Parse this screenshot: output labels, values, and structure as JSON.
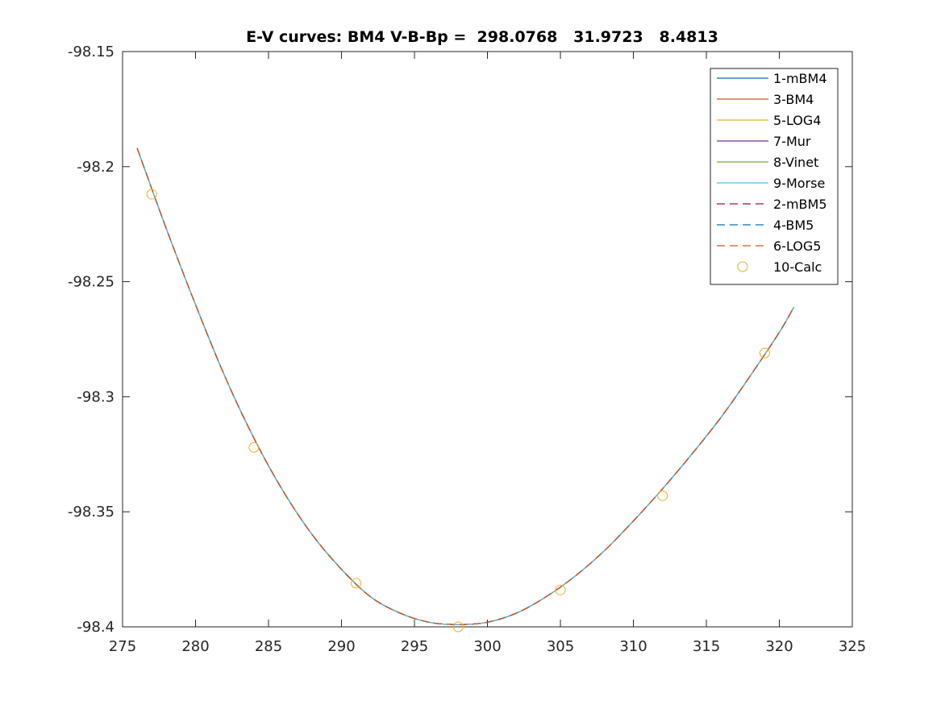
{
  "chart_data": {
    "type": "line",
    "title": "E-V curves: BM4 V-B-Bp =  298.0768   31.9723   8.4813",
    "xlabel": "",
    "ylabel": "",
    "xlim": [
      275,
      325
    ],
    "ylim": [
      -98.4,
      -98.15
    ],
    "xticks": [
      275,
      280,
      285,
      290,
      295,
      300,
      305,
      310,
      315,
      320,
      325
    ],
    "xtick_labels": [
      "275",
      "280",
      "285",
      "290",
      "295",
      "300",
      "305",
      "310",
      "315",
      "320",
      "325"
    ],
    "yticks": [
      -98.15,
      -98.2,
      -98.25,
      -98.3,
      -98.35,
      -98.4
    ],
    "ytick_labels": [
      "-98.15",
      "-98.2",
      "-98.25",
      "-98.3",
      "-98.35",
      "-98.4"
    ],
    "grid": false,
    "legend_position": "top-right",
    "curve_x": [
      276,
      278,
      280,
      282,
      284,
      286,
      288,
      290,
      292,
      294,
      296,
      298,
      300,
      302,
      304,
      306,
      308,
      310,
      312,
      314,
      316,
      318,
      320,
      321
    ],
    "curve_y": [
      -98.192,
      -98.227,
      -98.26,
      -98.291,
      -98.318,
      -98.341,
      -98.36,
      -98.375,
      -98.387,
      -98.394,
      -98.398,
      -98.399,
      -98.398,
      -98.394,
      -98.387,
      -98.378,
      -98.367,
      -98.354,
      -98.34,
      -98.325,
      -98.309,
      -98.291,
      -98.272,
      -98.261
    ],
    "series": [
      {
        "name": "1-mBM4",
        "color": "#0072BD",
        "style": "solid"
      },
      {
        "name": "3-BM4",
        "color": "#D95319",
        "style": "solid"
      },
      {
        "name": "5-LOG4",
        "color": "#EDB120",
        "style": "solid"
      },
      {
        "name": "7-Mur",
        "color": "#7E2F8E",
        "style": "solid"
      },
      {
        "name": "8-Vinet",
        "color": "#77AC30",
        "style": "solid"
      },
      {
        "name": "9-Morse",
        "color": "#4DBEEE",
        "style": "solid"
      },
      {
        "name": "2-mBM5",
        "color": "#A2142F",
        "style": "dashed"
      },
      {
        "name": "4-BM5",
        "color": "#0072BD",
        "style": "dashed"
      },
      {
        "name": "6-LOG5",
        "color": "#D95319",
        "style": "dashed"
      }
    ],
    "points": {
      "name": "10-Calc",
      "color": "#EDB120",
      "marker": "circle",
      "x": [
        277,
        284,
        291,
        298,
        305,
        312,
        319
      ],
      "y": [
        -98.212,
        -98.322,
        -98.381,
        -98.4,
        -98.384,
        -98.343,
        -98.281
      ]
    }
  }
}
